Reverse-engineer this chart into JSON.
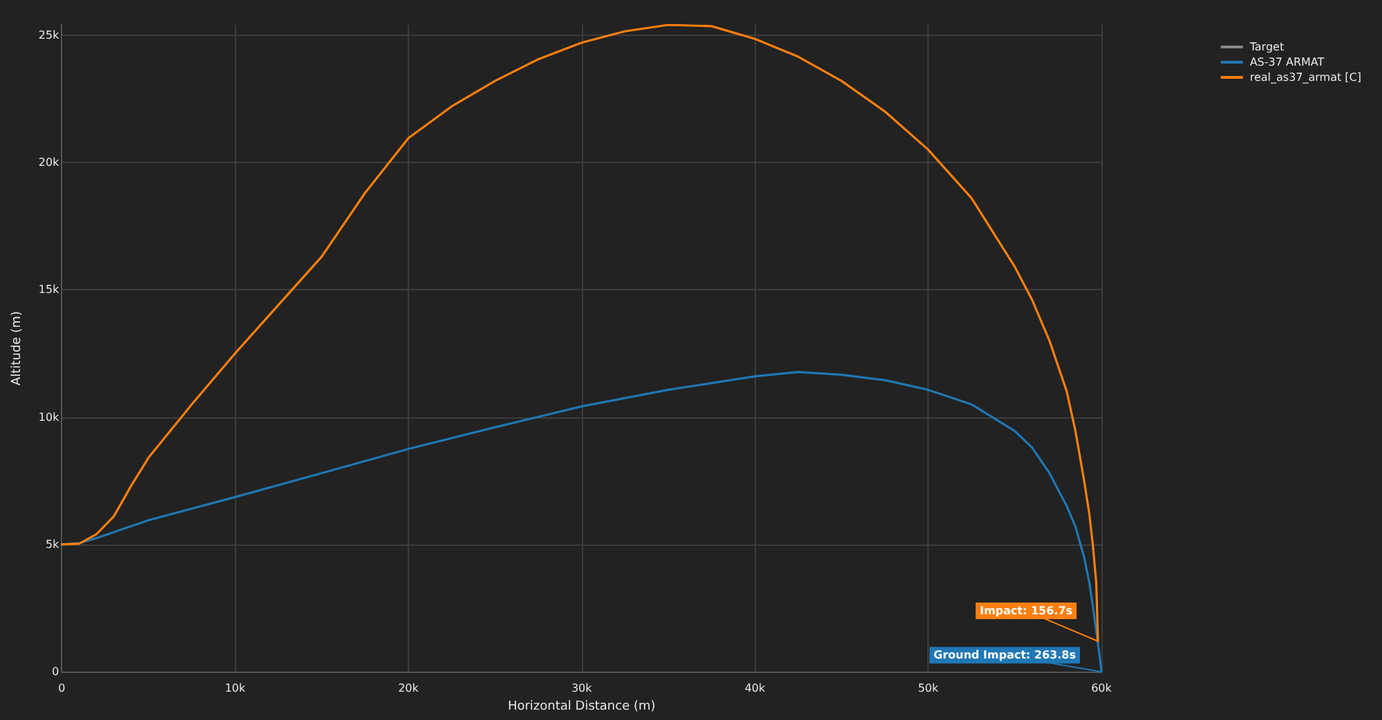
{
  "chart_data": {
    "type": "line",
    "xlabel": "Horizontal Distance (m)",
    "ylabel": "Altitude (m)",
    "xlim": [
      0,
      60000
    ],
    "xticks": [
      {
        "value": 0,
        "label": "0"
      },
      {
        "value": 10000,
        "label": "10k"
      },
      {
        "value": 20000,
        "label": "20k"
      },
      {
        "value": 30000,
        "label": "30k"
      },
      {
        "value": 40000,
        "label": "40k"
      },
      {
        "value": 50000,
        "label": "50k"
      },
      {
        "value": 60000,
        "label": "60k"
      }
    ],
    "ylim": [
      0,
      25400
    ],
    "yticks": [
      {
        "value": 0,
        "label": "0"
      },
      {
        "value": 5000,
        "label": "5k"
      },
      {
        "value": 10000,
        "label": "10k"
      },
      {
        "value": 15000,
        "label": "15k"
      },
      {
        "value": 20000,
        "label": "20k"
      },
      {
        "value": 25000,
        "label": "25k"
      }
    ],
    "grid": true,
    "legend": "top right",
    "marker": "none",
    "series": [
      {
        "name": "Target",
        "color": "#888888",
        "line_style": "dashed"
      },
      {
        "name": "AS-37 ARMAT",
        "color": "#1f77b4",
        "line_style": "solid",
        "x": [
          0,
          1000,
          2000,
          5000,
          10000,
          15000,
          20000,
          25000,
          30000,
          35000,
          40000,
          42500,
          45000,
          47500,
          50000,
          52500,
          55000,
          56000,
          57000,
          58000,
          58500,
          59000,
          59300,
          59500,
          59700,
          59900,
          60000
        ],
        "values": [
          5000,
          5050,
          5250,
          5950,
          6860,
          7800,
          8750,
          9600,
          10420,
          11070,
          11600,
          11770,
          11660,
          11450,
          11070,
          10500,
          9450,
          8800,
          7800,
          6500,
          5700,
          4500,
          3500,
          2600,
          1600,
          600,
          0
        ]
      },
      {
        "name": "real_as37_armat [C]",
        "color": "#ff7f0e",
        "line_style": "solid",
        "x": [
          0,
          1000,
          2000,
          3000,
          4000,
          5000,
          7500,
          10000,
          12500,
          15000,
          17500,
          20000,
          22500,
          25000,
          27500,
          30000,
          32500,
          35000,
          37500,
          40000,
          42500,
          45000,
          47500,
          50000,
          52500,
          55000,
          56000,
          57000,
          58000,
          58500,
          59000,
          59300,
          59500,
          59700,
          59800
        ],
        "values": [
          5000,
          5030,
          5400,
          6100,
          7300,
          8400,
          10500,
          12500,
          14400,
          16300,
          18800,
          20950,
          22200,
          23200,
          24050,
          24700,
          25150,
          25400,
          25350,
          24850,
          24150,
          23200,
          22000,
          20500,
          18600,
          15900,
          14600,
          13000,
          11000,
          9450,
          7500,
          6200,
          5000,
          3500,
          1200
        ]
      }
    ],
    "annotations": [
      {
        "text": "Impact: 156.7s",
        "x": 59800,
        "y": 1200
      },
      {
        "text": "Ground Impact: 263.8s",
        "x": 60000,
        "y": 0
      }
    ]
  }
}
